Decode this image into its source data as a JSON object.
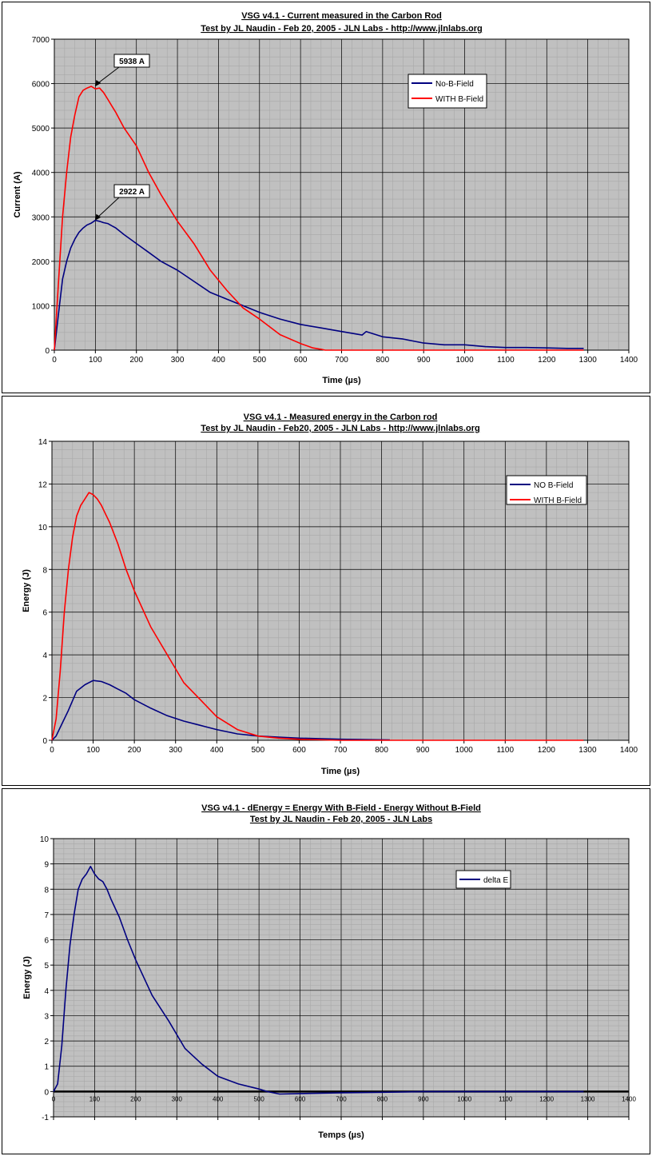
{
  "chart_data": [
    {
      "type": "line",
      "title": "VSG v4.1 - Current measured in the Carbon Rod",
      "subtitle": "Test by JL Naudin - Feb 20, 2005 - JLN Labs - http://www.jlnlabs.org",
      "xlabel": "Time (µs)",
      "ylabel": "Current (A)",
      "xlim": [
        0,
        1400
      ],
      "ylim": [
        0,
        7000
      ],
      "xticks": [
        "0",
        "100",
        "200",
        "300",
        "400",
        "500",
        "600",
        "700",
        "800",
        "900",
        "1000",
        "1100",
        "1200",
        "1300",
        "1400"
      ],
      "yticks": [
        "0",
        "1000",
        "2000",
        "3000",
        "4000",
        "5000",
        "6000",
        "7000"
      ],
      "grid": true,
      "legend_position": "top-right",
      "annotations": [
        {
          "text": "5938 A",
          "x": 100,
          "y": 5938
        },
        {
          "text": "2922 A",
          "x": 100,
          "y": 2922
        }
      ],
      "series": [
        {
          "name": "No-B-Field",
          "color": "#000080",
          "x": [
            0,
            10,
            20,
            30,
            40,
            50,
            60,
            70,
            80,
            90,
            100,
            110,
            120,
            130,
            140,
            150,
            170,
            200,
            230,
            260,
            300,
            340,
            380,
            420,
            460,
            500,
            550,
            600,
            650,
            700,
            750,
            760,
            800,
            850,
            900,
            950,
            1000,
            1050,
            1100,
            1150,
            1200,
            1250,
            1290
          ],
          "y": [
            0,
            800,
            1600,
            2000,
            2300,
            2500,
            2650,
            2750,
            2820,
            2860,
            2922,
            2900,
            2870,
            2850,
            2800,
            2750,
            2600,
            2400,
            2200,
            2000,
            1800,
            1550,
            1300,
            1150,
            1000,
            850,
            700,
            580,
            500,
            420,
            340,
            420,
            300,
            250,
            160,
            120,
            120,
            80,
            60,
            60,
            50,
            40,
            40
          ]
        },
        {
          "name": "WITH B-Field",
          "color": "#ff0000",
          "x": [
            0,
            10,
            20,
            30,
            40,
            50,
            60,
            70,
            80,
            90,
            100,
            110,
            120,
            130,
            140,
            150,
            170,
            200,
            230,
            260,
            300,
            340,
            380,
            420,
            460,
            500,
            550,
            600,
            630,
            650,
            660,
            700,
            800,
            900,
            1000,
            1100,
            1200,
            1290
          ],
          "y": [
            0,
            1500,
            3000,
            4000,
            4800,
            5300,
            5700,
            5850,
            5900,
            5938,
            5880,
            5900,
            5800,
            5650,
            5500,
            5350,
            5000,
            4600,
            4000,
            3500,
            2900,
            2400,
            1800,
            1350,
            950,
            700,
            350,
            150,
            50,
            20,
            0,
            0,
            0,
            0,
            0,
            0,
            0,
            0
          ]
        }
      ]
    },
    {
      "type": "line",
      "title": "VSG v4.1 - Measured energy in the Carbon rod",
      "subtitle": "Test by JL Naudin - Feb20, 2005 - JLN Labs - http://www.jlnlabs.org",
      "xlabel": "Time (µs)",
      "ylabel": "Energy (J)",
      "xlim": [
        0,
        1400
      ],
      "ylim": [
        0,
        14
      ],
      "xticks": [
        "0",
        "100",
        "200",
        "300",
        "400",
        "500",
        "600",
        "700",
        "800",
        "900",
        "1000",
        "1100",
        "1200",
        "1300",
        "1400"
      ],
      "yticks": [
        "0",
        "2",
        "4",
        "6",
        "8",
        "10",
        "12",
        "14"
      ],
      "grid": true,
      "legend_position": "top-right",
      "series": [
        {
          "name": "NO B-Field",
          "color": "#000080",
          "x": [
            0,
            10,
            20,
            40,
            60,
            80,
            100,
            120,
            140,
            160,
            180,
            200,
            240,
            280,
            320,
            360,
            400,
            450,
            500,
            550,
            600,
            700,
            820
          ],
          "y": [
            0,
            0.2,
            0.6,
            1.4,
            2.3,
            2.6,
            2.8,
            2.75,
            2.6,
            2.4,
            2.2,
            1.9,
            1.5,
            1.15,
            0.9,
            0.7,
            0.5,
            0.3,
            0.2,
            0.15,
            0.1,
            0.05,
            0.02
          ]
        },
        {
          "name": "WITH B-Field",
          "color": "#ff0000",
          "x": [
            0,
            10,
            20,
            30,
            40,
            50,
            60,
            70,
            80,
            90,
            100,
            110,
            120,
            130,
            140,
            160,
            180,
            200,
            240,
            280,
            320,
            360,
            400,
            450,
            500,
            550,
            600,
            700,
            800,
            900,
            1000,
            1100,
            1200,
            1290
          ],
          "y": [
            0,
            1,
            3.2,
            6,
            8,
            9.5,
            10.5,
            11,
            11.3,
            11.6,
            11.5,
            11.3,
            11,
            10.6,
            10.2,
            9.2,
            8,
            7,
            5.3,
            4,
            2.7,
            1.9,
            1.1,
            0.5,
            0.2,
            0.1,
            0.05,
            0,
            0,
            0,
            0,
            0,
            0,
            0
          ]
        }
      ]
    },
    {
      "type": "line",
      "title": "VSG v4.1 - dEnergy = Energy With B-Field - Energy Without B-Field",
      "subtitle": "Test by JL Naudin - Feb 20, 2005 - JLN Labs",
      "xlabel": "Temps (µs)",
      "ylabel": "Energy (J)",
      "xlim": [
        0,
        1400
      ],
      "ylim": [
        -1,
        10
      ],
      "xticks": [
        "0",
        "100",
        "200",
        "300",
        "400",
        "500",
        "600",
        "700",
        "800",
        "900",
        "1000",
        "1100",
        "1200",
        "1300",
        "1400"
      ],
      "yticks": [
        "-1",
        "0",
        "1",
        "2",
        "3",
        "4",
        "5",
        "6",
        "7",
        "8",
        "9",
        "10"
      ],
      "grid": true,
      "legend_position": "top-right",
      "series": [
        {
          "name": "delta E",
          "color": "#000080",
          "x": [
            0,
            10,
            20,
            30,
            40,
            50,
            60,
            70,
            80,
            90,
            100,
            110,
            120,
            130,
            140,
            160,
            180,
            200,
            240,
            280,
            320,
            360,
            400,
            450,
            500,
            520,
            550,
            600,
            700,
            800,
            900,
            1000,
            1100,
            1200,
            1290
          ],
          "y": [
            0,
            0.3,
            1.8,
            4,
            5.8,
            7,
            8,
            8.4,
            8.6,
            8.9,
            8.6,
            8.4,
            8.3,
            8,
            7.6,
            6.9,
            6,
            5.2,
            3.8,
            2.8,
            1.7,
            1.1,
            0.6,
            0.3,
            0.1,
            0,
            -0.1,
            -0.08,
            -0.05,
            -0.03,
            0,
            0,
            0,
            0,
            0
          ]
        }
      ]
    }
  ]
}
